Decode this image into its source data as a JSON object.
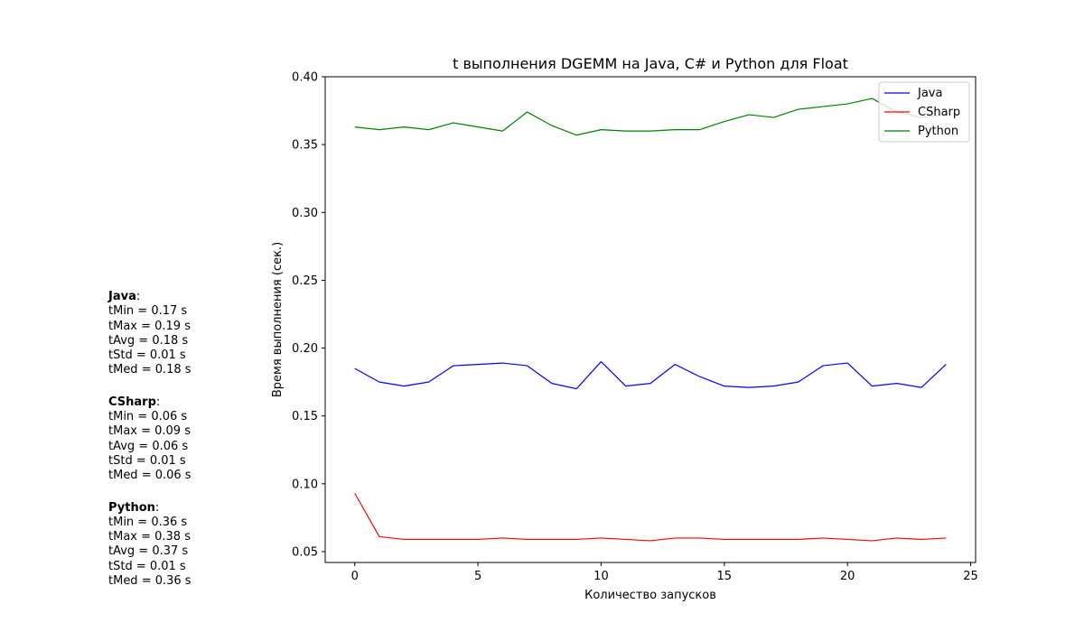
{
  "chart_data": {
    "type": "line",
    "title": "t выполнения DGEMM на Java, C# и Python для Float",
    "xlabel": "Количество запусков",
    "ylabel": "Время выполнения (сек.)",
    "xlim": [
      -1.2,
      25.2
    ],
    "ylim": [
      0.042,
      0.4
    ],
    "xticks": [
      0,
      5,
      10,
      15,
      20,
      25
    ],
    "yticks": [
      0.05,
      0.1,
      0.15,
      0.2,
      0.25,
      0.3,
      0.35,
      0.4
    ],
    "ytick_labels": [
      "0.05",
      "0.10",
      "0.15",
      "0.20",
      "0.25",
      "0.30",
      "0.35",
      "0.40"
    ],
    "grid": false,
    "legend_position": "top-right",
    "x": [
      0,
      1,
      2,
      3,
      4,
      5,
      6,
      7,
      8,
      9,
      10,
      11,
      12,
      13,
      14,
      15,
      16,
      17,
      18,
      19,
      20,
      21,
      22,
      23,
      24
    ],
    "series": [
      {
        "name": "Java",
        "color": "#0000ff",
        "values": [
          0.185,
          0.175,
          0.172,
          0.175,
          0.187,
          0.188,
          0.189,
          0.187,
          0.174,
          0.17,
          0.19,
          0.172,
          0.174,
          0.188,
          0.179,
          0.172,
          0.171,
          0.172,
          0.175,
          0.187,
          0.189,
          0.172,
          0.174,
          0.171,
          0.188
        ]
      },
      {
        "name": "CSharp",
        "color": "#ff0000",
        "values": [
          0.093,
          0.061,
          0.059,
          0.059,
          0.059,
          0.059,
          0.06,
          0.059,
          0.059,
          0.059,
          0.06,
          0.059,
          0.058,
          0.06,
          0.06,
          0.059,
          0.059,
          0.059,
          0.059,
          0.06,
          0.059,
          0.058,
          0.06,
          0.059,
          0.06
        ]
      },
      {
        "name": "Python",
        "color": "#008000",
        "values": [
          0.363,
          0.361,
          0.363,
          0.361,
          0.366,
          0.363,
          0.36,
          0.374,
          0.364,
          0.357,
          0.361,
          0.36,
          0.36,
          0.361,
          0.361,
          0.367,
          0.372,
          0.37,
          0.376,
          0.378,
          0.38,
          0.384,
          0.374,
          0.37,
          0.372
        ]
      }
    ]
  },
  "stats": [
    {
      "name": "Java",
      "lines": [
        "tMin = 0.17 s",
        "tMax = 0.19 s",
        "tAvg = 0.18 s",
        "tStd = 0.01 s",
        "tMed = 0.18 s"
      ]
    },
    {
      "name": "CSharp",
      "lines": [
        "tMin = 0.06 s",
        "tMax = 0.09 s",
        "tAvg = 0.06 s",
        "tStd = 0.01 s",
        "tMed = 0.06 s"
      ]
    },
    {
      "name": "Python",
      "lines": [
        "tMin = 0.36 s",
        "tMax = 0.38 s",
        "tAvg = 0.37 s",
        "tStd = 0.01 s",
        "tMed = 0.36 s"
      ]
    }
  ]
}
